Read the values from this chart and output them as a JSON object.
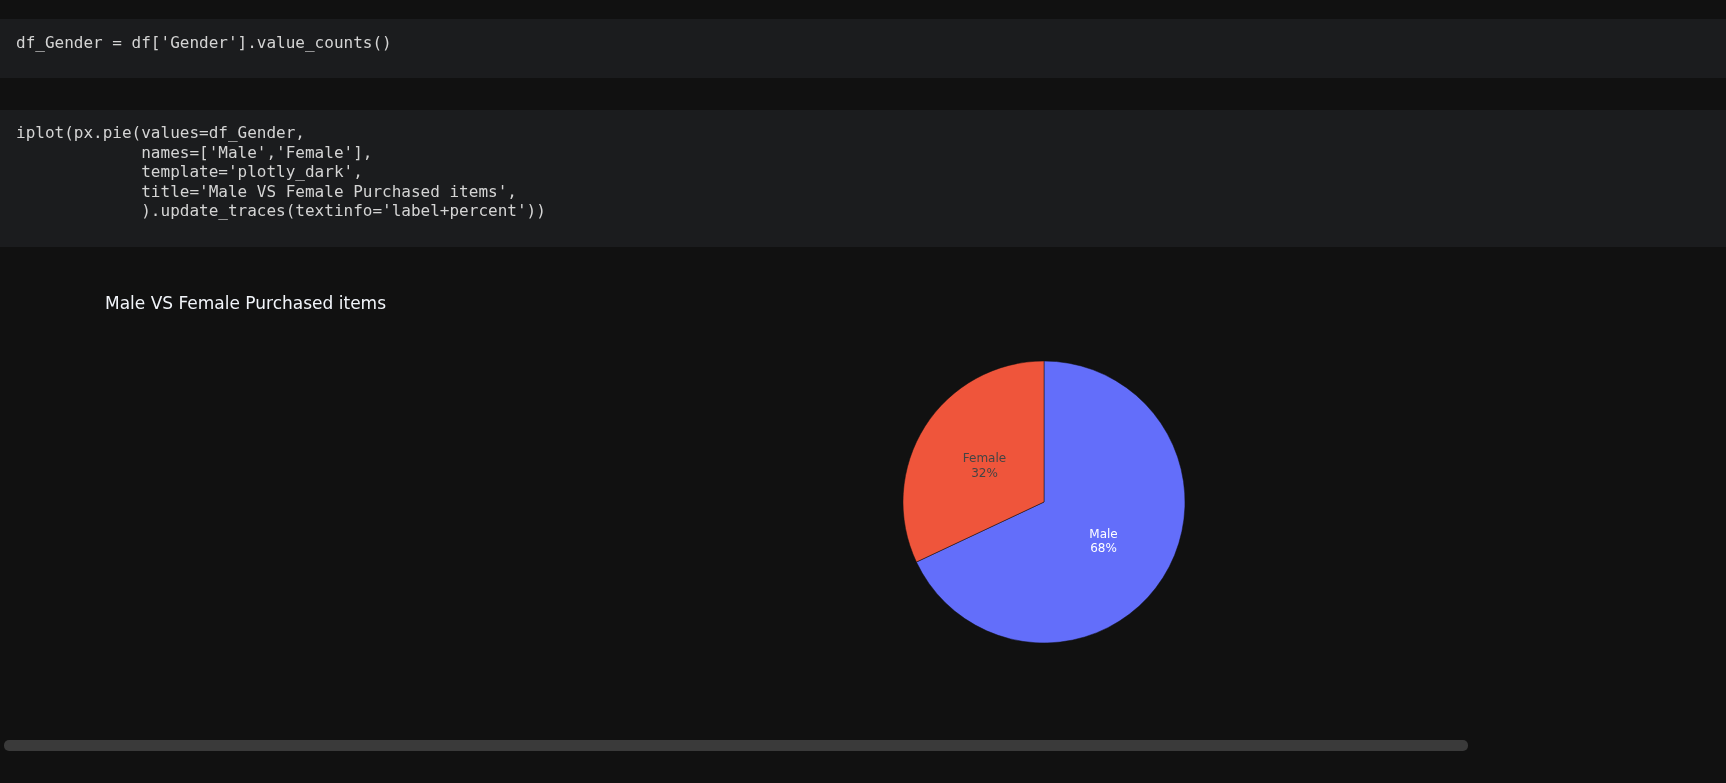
{
  "chart_data": {
    "type": "pie",
    "title": "Male VS Female Purchased items",
    "categories": [
      "Male",
      "Female"
    ],
    "values": [
      68,
      32
    ],
    "colors": [
      "#636efa",
      "#ef553b"
    ],
    "value_labels": [
      "68%",
      "32%"
    ],
    "annotations": [
      "df_Gender = df['Gender'].value_counts()",
      "iplot(px.pie(values=df_Gender,",
      "             names=['Male','Female'],",
      "             template='plotly_dark',",
      "             title='Male VS Female Purchased items',",
      "             ).update_traces(textinfo='label+percent'))"
    ]
  }
}
